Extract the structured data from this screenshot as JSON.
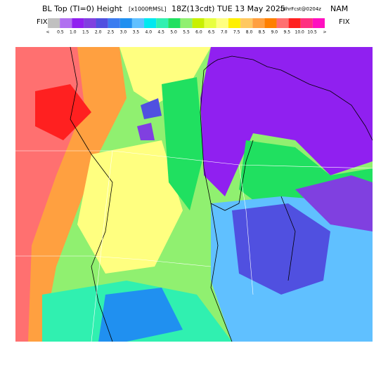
{
  "header": {
    "title_main": "BL Top (TI=0) Height",
    "title_units": "[x1000ftMSL]",
    "title_time": "18Z(13cdt) TUE 13 May 2025",
    "title_fcst": "18hrFcst@0204z",
    "title_model": "NAM"
  },
  "legend": {
    "left_label": "FIX",
    "right_label": "FIX",
    "labels": [
      "<",
      "0.5",
      "1.0",
      "1.5",
      "2.0",
      "2.5",
      "3.0",
      "3.5",
      "4.0",
      "4.5",
      "5.0",
      "5.5",
      "6.0",
      "6.5",
      "7.0",
      "7.5",
      "8.0",
      "8.5",
      "9.0",
      "9.5",
      "10.0",
      "10.5",
      ">"
    ],
    "colors": [
      "#c0c0c0",
      "#b070f0",
      "#9020f0",
      "#8040e0",
      "#5050e0",
      "#3c7cf0",
      "#2090f0",
      "#60c0ff",
      "#00e8f0",
      "#30f0b0",
      "#20e060",
      "#90f070",
      "#c8f000",
      "#e8ff40",
      "#ffff80",
      "#fff000",
      "#ffc860",
      "#ffa040",
      "#ff8000",
      "#ff7070",
      "#ff2020",
      "#ff3080",
      "#ff10c0"
    ]
  }
}
